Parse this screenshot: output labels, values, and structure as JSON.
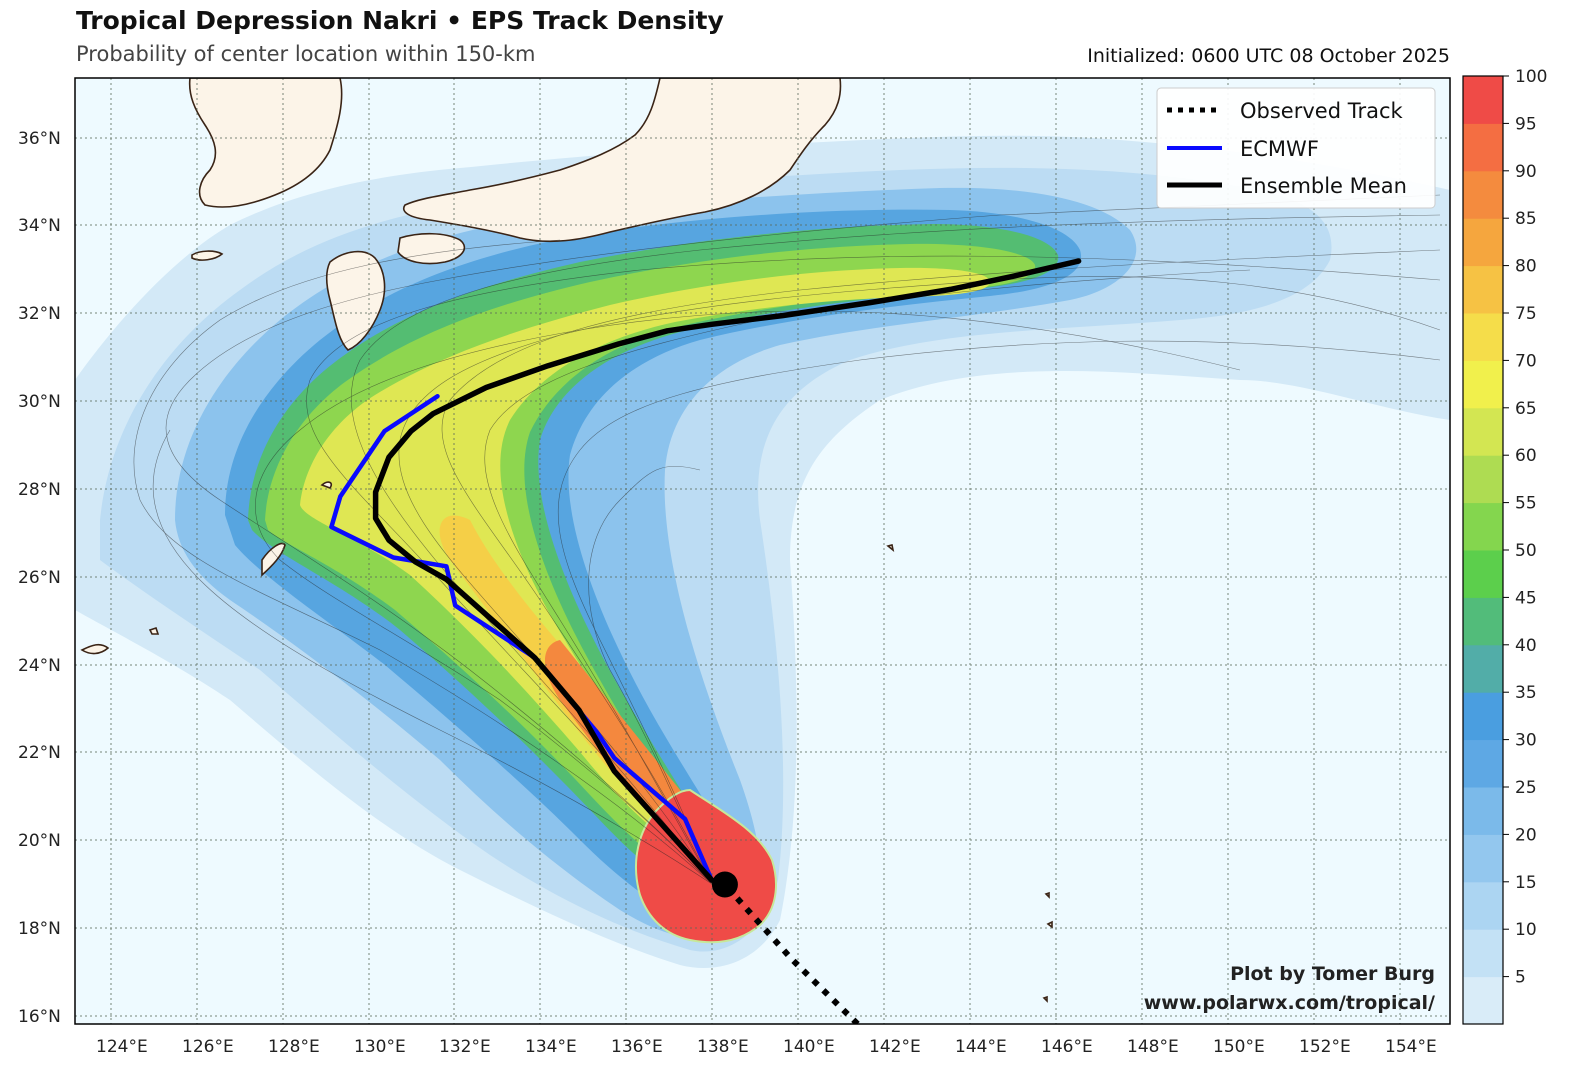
{
  "header": {
    "title": "Tropical Depression Nakri • EPS Track Density",
    "subtitle": "Probability of center location within 150-km",
    "initialized": "Initialized: 0600 UTC 08 October 2025"
  },
  "map": {
    "lon_range": [
      123.8,
      154.9
    ],
    "lat_range": [
      15.8,
      37.5
    ],
    "lon_ticks": [
      "124°E",
      "126°E",
      "128°E",
      "130°E",
      "132°E",
      "134°E",
      "136°E",
      "138°E",
      "140°E",
      "142°E",
      "144°E",
      "146°E",
      "148°E",
      "150°E",
      "152°E",
      "154°E"
    ],
    "lat_ticks": [
      "16°N",
      "18°N",
      "20°N",
      "22°N",
      "24°N",
      "26°N",
      "28°N",
      "30°N",
      "32°N",
      "34°N",
      "36°N"
    ],
    "gridlines": true,
    "ocean_color": "#eefaff",
    "land_color": "#fcf4e8",
    "coast_color": "#3a2416"
  },
  "legend": {
    "placement": "top-right",
    "items": [
      {
        "label": "Observed Track",
        "style": "dotted",
        "color": "#000000"
      },
      {
        "label": "ECMWF",
        "style": "solid",
        "color": "#0a0aff"
      },
      {
        "label": "Ensemble Mean",
        "style": "solid",
        "color": "#000000"
      }
    ]
  },
  "colorbar": {
    "ticks": [
      "100",
      "95",
      "90",
      "85",
      "80",
      "75",
      "70",
      "65",
      "60",
      "55",
      "50",
      "45",
      "40",
      "35",
      "30",
      "25",
      "20",
      "15",
      "10",
      "5"
    ],
    "colors": [
      "#d9ecf8",
      "#c3e1f5",
      "#acd5f2",
      "#93c7ee",
      "#7bbaea",
      "#5ea8e4",
      "#4a9ee0",
      "#52ada8",
      "#52bc7a",
      "#5ccf4c",
      "#84d64e",
      "#aedc52",
      "#d3e652",
      "#f1f04c",
      "#f5dd4a",
      "#f6c244",
      "#f5a63e",
      "#f48b3e",
      "#f46e42",
      "#ef4b47"
    ]
  },
  "chart_data": {
    "type": "track_density_map",
    "storm": "Nakri",
    "current_position": {
      "lon": 138.5,
      "lat": 19.0
    },
    "observed_track": [
      [
        141.5,
        15.8
      ],
      [
        140.0,
        17.3
      ],
      [
        138.5,
        19.0
      ]
    ],
    "ecmwf_track": [
      [
        138.2,
        19.1
      ],
      [
        137.6,
        20.5
      ],
      [
        136.0,
        21.9
      ],
      [
        135.6,
        22.5
      ],
      [
        134.2,
        24.2
      ],
      [
        132.4,
        25.4
      ],
      [
        132.2,
        26.3
      ],
      [
        131.0,
        26.5
      ],
      [
        129.6,
        27.2
      ],
      [
        129.8,
        27.9
      ],
      [
        130.8,
        29.4
      ],
      [
        132.0,
        30.2
      ]
    ],
    "ensemble_mean_track": [
      [
        138.2,
        19.1
      ],
      [
        136.0,
        21.6
      ],
      [
        135.2,
        23.0
      ],
      [
        134.2,
        24.2
      ],
      [
        133.2,
        25.1
      ],
      [
        132.2,
        26.0
      ],
      [
        131.5,
        26.4
      ],
      [
        130.9,
        26.9
      ],
      [
        130.6,
        27.4
      ],
      [
        130.6,
        28.0
      ],
      [
        130.9,
        28.8
      ],
      [
        131.4,
        29.4
      ],
      [
        131.9,
        29.8
      ],
      [
        133.1,
        30.4
      ],
      [
        134.5,
        30.9
      ],
      [
        136.1,
        31.4
      ],
      [
        137.2,
        31.7
      ],
      [
        138.2,
        31.85
      ],
      [
        139.8,
        32.05
      ],
      [
        141.8,
        32.35
      ],
      [
        143.6,
        32.65
      ],
      [
        145.0,
        32.95
      ],
      [
        146.5,
        33.3
      ]
    ],
    "density_units": "%",
    "density_levels": [
      5,
      10,
      15,
      20,
      25,
      30,
      35,
      40,
      45,
      50,
      55,
      60,
      65,
      70,
      75,
      80,
      85,
      90,
      95,
      100
    ]
  },
  "credit": {
    "line1": "Plot by Tomer Burg",
    "line2": "www.polarwx.com/tropical/"
  }
}
